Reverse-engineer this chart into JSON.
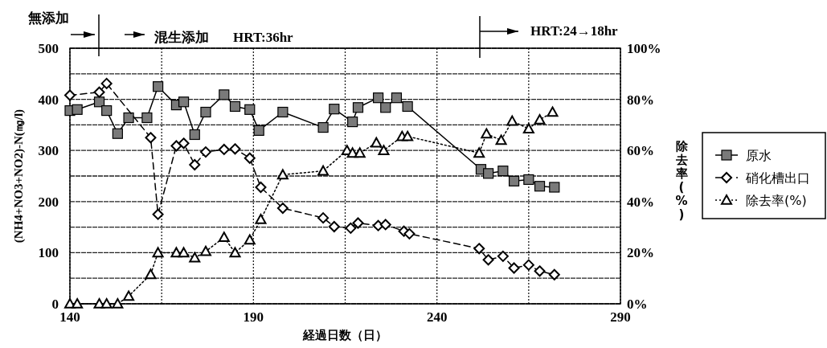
{
  "chart_data": {
    "type": "line",
    "xlabel": "経過日数（日）",
    "ylabel": "(NH4+NO3+NO2)-N(㎎/l)",
    "y2label": "除去率(%)",
    "annotations": [
      "無添加",
      "混生添加",
      "HRT:36hr",
      "HRT:24→18hr"
    ],
    "xlim": [
      140,
      290
    ],
    "xticks": [
      140,
      {
        "value": 165,
        "label": null
      },
      190,
      {
        "value": 215,
        "label": null
      },
      240,
      {
        "value": 265,
        "label": null
      },
      290
    ],
    "ylim": [
      0,
      500
    ],
    "yticks": [
      0,
      {
        "value": 50,
        "label": null
      },
      100,
      {
        "value": 150,
        "label": null
      },
      200,
      {
        "value": 250,
        "label": null
      },
      300,
      {
        "value": 350,
        "label": null
      },
      400,
      {
        "value": 450,
        "label": null
      },
      500
    ],
    "y2lim": [
      0,
      100
    ],
    "y2ticks": [
      {
        "value": 0,
        "label": "0%"
      },
      {
        "value": 20,
        "label": "20%"
      },
      {
        "value": 40,
        "label": "40%"
      },
      {
        "value": 60,
        "label": "60%"
      },
      {
        "value": 80,
        "label": "80%"
      },
      {
        "value": 100,
        "label": "100%"
      }
    ],
    "grid": true,
    "legend": "right",
    "series": [
      {
        "name": "原水",
        "color": "#7a7a7a",
        "marker": "square",
        "line_style": "solid",
        "x": [
          140,
          142,
          148,
          150,
          153,
          156,
          161,
          164,
          169,
          171,
          174,
          177,
          182,
          185,
          189,
          191.5,
          198,
          209,
          212,
          217,
          218.5,
          224,
          226,
          229,
          232,
          252,
          254,
          258,
          261,
          265,
          268,
          272
        ],
        "values": [
          378,
          380,
          395,
          378,
          333,
          364,
          364,
          425,
          389,
          395,
          331,
          375,
          409,
          386,
          380,
          339,
          375,
          345,
          381,
          356,
          384,
          403,
          384,
          403,
          386,
          263,
          255,
          260,
          240,
          243,
          230,
          228
        ]
      },
      {
        "name": "硝化槽出口",
        "color": "#000000",
        "marker": "diamond",
        "line_style": "dashed",
        "x": [
          140,
          148,
          150,
          162,
          164,
          169,
          171,
          174,
          177,
          182,
          185,
          189,
          192,
          198,
          209,
          212,
          216.5,
          218.5,
          224,
          226,
          231,
          232.5,
          251.5,
          254,
          258,
          261,
          265,
          268,
          272
        ],
        "values": [
          408,
          414,
          431,
          325,
          175,
          309,
          314,
          272,
          297,
          302,
          303,
          285,
          228,
          187,
          168,
          151,
          148,
          158,
          153,
          155,
          142,
          137,
          108,
          86,
          93,
          70,
          76,
          64,
          57
        ]
      },
      {
        "name": "除去率(%)",
        "color": "#000000",
        "marker": "triangle",
        "line_style": "dotted",
        "axis": "y2",
        "x": [
          140,
          142,
          148,
          150,
          153,
          156,
          162,
          164,
          169,
          171,
          174,
          177,
          182,
          185,
          189,
          192,
          198,
          209,
          215.5,
          217,
          219,
          223.5,
          225.5,
          230.5,
          232,
          251.5,
          253.5,
          257.5,
          260.5,
          265,
          268,
          271.5
        ],
        "values": [
          0,
          0,
          0,
          0,
          0,
          3,
          11.5,
          20,
          20,
          20,
          18,
          20.5,
          26,
          20,
          25,
          33,
          50.5,
          52,
          60,
          59,
          59,
          63,
          60,
          65.5,
          65.5,
          59,
          66.5,
          64,
          71.5,
          68.5,
          72,
          75
        ]
      }
    ]
  }
}
